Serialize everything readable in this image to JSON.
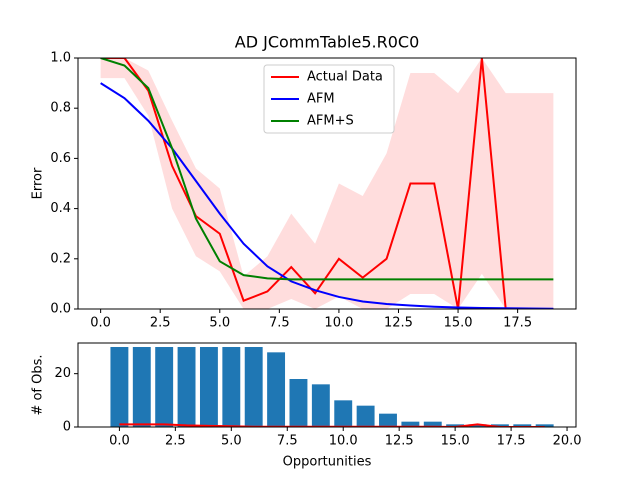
{
  "chart_data": [
    {
      "type": "line",
      "title": "AD JCommTable5.R0C0",
      "ylabel": "Error",
      "x": [
        0,
        1,
        2,
        3,
        4,
        5,
        6,
        7,
        8,
        9,
        10,
        11,
        12,
        13,
        14,
        15,
        16,
        17,
        18,
        19
      ],
      "series": [
        {
          "name": "Actual Data",
          "color": "#ff0000",
          "values": [
            1.0,
            1.0,
            0.87,
            0.57,
            0.37,
            0.3,
            0.033,
            0.07,
            0.167,
            0.0625,
            0.2,
            0.125,
            0.2,
            0.5,
            0.5,
            0.0,
            1.0,
            0.0,
            0.0,
            0.0
          ]
        },
        {
          "name": "AFM",
          "color": "#0000ff",
          "values": [
            0.9,
            0.84,
            0.75,
            0.64,
            0.51,
            0.38,
            0.26,
            0.17,
            0.11,
            0.075,
            0.048,
            0.03,
            0.02,
            0.014,
            0.009,
            0.006,
            0.004,
            0.003,
            0.002,
            0.001
          ]
        },
        {
          "name": "AFM+S",
          "color": "#008000",
          "values": [
            1.0,
            0.97,
            0.88,
            0.64,
            0.36,
            0.19,
            0.135,
            0.122,
            0.118,
            0.118,
            0.118,
            0.118,
            0.118,
            0.118,
            0.118,
            0.118,
            0.118,
            0.118,
            0.118,
            0.118
          ]
        }
      ],
      "band": {
        "color": "#ffdddd",
        "upper": [
          1.0,
          1.0,
          0.95,
          0.75,
          0.56,
          0.48,
          0.13,
          0.21,
          0.38,
          0.26,
          0.5,
          0.45,
          0.62,
          0.94,
          0.94,
          0.86,
          1.0,
          0.86,
          0.86,
          0.86
        ],
        "lower": [
          0.92,
          0.92,
          0.77,
          0.4,
          0.21,
          0.15,
          0.0,
          0.0,
          0.04,
          0.0,
          0.05,
          0.0,
          0.0,
          0.06,
          0.06,
          0.0,
          0.14,
          0.0,
          0.0,
          0.0
        ]
      },
      "xlim": [
        -0.95,
        19.95
      ],
      "ylim": [
        0,
        1
      ],
      "xticks": [
        {
          "value": 0,
          "label": "0.0"
        },
        2.5,
        {
          "value": 5,
          "label": "5.0"
        },
        7.5,
        {
          "value": 10,
          "label": "10.0"
        },
        12.5,
        {
          "value": 15,
          "label": "15.0"
        },
        17.5
      ],
      "yticks": [
        {
          "value": 0,
          "label": "0.0"
        },
        0.2,
        0.4,
        0.6,
        0.8,
        {
          "value": 1,
          "label": "1.0"
        }
      ],
      "legend": "upper center"
    },
    {
      "type": "bar",
      "ylabel": "# of Obs.",
      "xlabel": "Opportunities",
      "x": [
        0,
        1,
        2,
        3,
        4,
        5,
        6,
        7,
        8,
        9,
        10,
        11,
        12,
        13,
        14,
        15,
        16,
        17,
        18,
        19
      ],
      "series": [
        {
          "type": "bar",
          "color": "#1f77b4",
          "values": [
            30,
            30,
            30,
            30,
            30,
            30,
            30,
            28,
            18,
            16,
            10,
            8,
            5,
            2,
            2,
            1,
            1,
            1,
            1,
            1
          ]
        },
        {
          "type": "line",
          "color": "#ff0000",
          "values": [
            1,
            1,
            1,
            0.6,
            0.4,
            0.3,
            0.1,
            0.1,
            0.1,
            0.1,
            0.1,
            0.1,
            0.1,
            0.1,
            0.1,
            0,
            1,
            0,
            0,
            0
          ]
        }
      ],
      "xlim": [
        -1.85,
        20.4
      ],
      "ylim": [
        0,
        31.5
      ],
      "xticks": [
        {
          "value": 0,
          "label": "0.0"
        },
        2.5,
        {
          "value": 5,
          "label": "5.0"
        },
        7.5,
        {
          "value": 10,
          "label": "10.0"
        },
        12.5,
        {
          "value": 15,
          "label": "15.0"
        },
        17.5,
        {
          "value": 20,
          "label": "20.0"
        }
      ],
      "yticks": [
        0,
        20
      ]
    }
  ]
}
